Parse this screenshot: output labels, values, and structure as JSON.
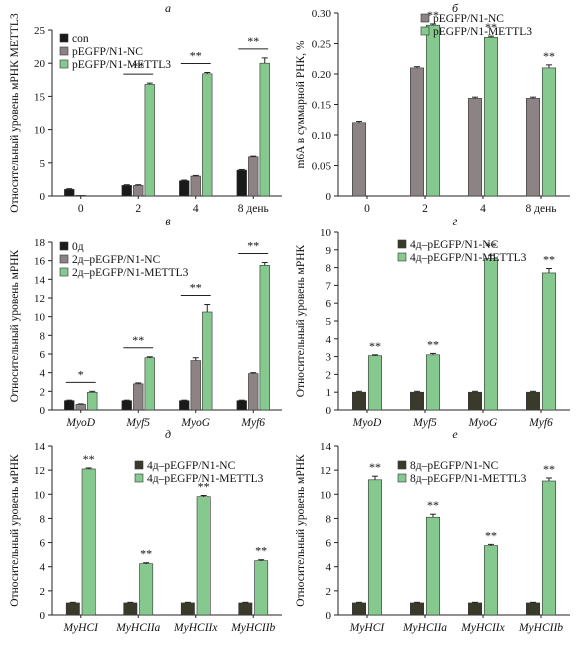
{
  "colors": {
    "con": "#1a1a1a",
    "dark": "#3a3a2a",
    "gray": "#8c8484",
    "green": "#86c98f",
    "axis": "#222222"
  },
  "chart_data": [
    {
      "panel": "а",
      "type": "bar",
      "ylabel": "Относительный уровень мРНК METTL3",
      "ylim": [
        0,
        25
      ],
      "yticks": [
        "0",
        "5",
        "10",
        "15",
        "20",
        "25"
      ],
      "categories": [
        "0",
        "2",
        "4",
        "8 день"
      ],
      "legend": [
        "con",
        "pEGFP/N1-NC",
        "pEGFP/N1-METTL3"
      ],
      "series": [
        {
          "name": "con",
          "values": [
            1.0,
            1.6,
            2.3,
            3.9
          ],
          "errors": [
            0.1,
            0.1,
            0.1,
            0.1
          ]
        },
        {
          "name": "pEGFP/N1-NC",
          "values": [
            0.1,
            1.6,
            3.0,
            5.9
          ],
          "errors": [
            0,
            0.1,
            0.1,
            0.1
          ]
        },
        {
          "name": "pEGFP/N1-METTL3",
          "values": [
            null,
            16.8,
            18.4,
            20.0
          ],
          "errors": [
            0,
            0.2,
            0.2,
            0.8
          ]
        }
      ],
      "annotations": [
        {
          "category": 1,
          "text": "**"
        },
        {
          "category": 2,
          "text": "**"
        },
        {
          "category": 3,
          "text": "**"
        }
      ]
    },
    {
      "panel": "б",
      "type": "bar",
      "ylabel": "m6A в суммарной РНК, %",
      "ylim": [
        0,
        0.3
      ],
      "yticks": [
        "0",
        "0.05",
        "0.10",
        "0.15",
        "0.20",
        "0.25",
        "0.30"
      ],
      "categories": [
        "0",
        "2",
        "4",
        "8 день"
      ],
      "legend": [
        "pEGFP/N1-NC",
        "pEGFP/N1-METTL3"
      ],
      "series": [
        {
          "name": "pEGFP/N1-NC",
          "values": [
            0.12,
            0.21,
            0.16,
            0.16
          ],
          "errors": [
            0.002,
            0.002,
            0.002,
            0.002
          ]
        },
        {
          "name": "pEGFP/N1-METTL3",
          "values": [
            null,
            0.28,
            0.26,
            0.21
          ],
          "errors": [
            0,
            0.002,
            0.002,
            0.005
          ]
        }
      ],
      "annotations": [
        {
          "category": 1,
          "text": "**"
        },
        {
          "category": 2,
          "text": "**"
        },
        {
          "category": 3,
          "text": "**"
        }
      ]
    },
    {
      "panel": "в",
      "type": "bar",
      "ylabel": "Относительный уровень мРНК",
      "ylim": [
        0,
        18
      ],
      "yticks": [
        "0",
        "2",
        "4",
        "6",
        "8",
        "10",
        "12",
        "14",
        "16",
        "18"
      ],
      "categories": [
        "MyoD",
        "Myf5",
        "MyoG",
        "Myf6"
      ],
      "legend": [
        "0д",
        "2д–pEGFP/N1-NC",
        "2д–pEGFP/N1-METTL3"
      ],
      "series": [
        {
          "name": "0д",
          "values": [
            1.0,
            1.0,
            1.0,
            1.0
          ],
          "errors": [
            0.05,
            0.05,
            0.05,
            0.05
          ]
        },
        {
          "name": "2д–pEGFP/N1-NC",
          "values": [
            0.6,
            2.8,
            5.3,
            3.9
          ],
          "errors": [
            0.05,
            0.1,
            0.3,
            0.1
          ]
        },
        {
          "name": "2д–pEGFP/N1-METTL3",
          "values": [
            1.9,
            5.6,
            10.5,
            15.5
          ],
          "errors": [
            0.1,
            0.1,
            0.8,
            0.3
          ]
        }
      ],
      "annotations": [
        {
          "category": 0,
          "text": "*"
        },
        {
          "category": 1,
          "text": "**"
        },
        {
          "category": 2,
          "text": "**"
        },
        {
          "category": 3,
          "text": "**"
        }
      ]
    },
    {
      "panel": "г",
      "type": "bar",
      "ylabel": "Относительный уровень мРНК",
      "ylim": [
        0,
        10
      ],
      "yticks": [
        "0",
        "1",
        "2",
        "3",
        "4",
        "5",
        "6",
        "7",
        "8",
        "9",
        "10"
      ],
      "categories": [
        "MyoD",
        "Myf5",
        "MyoG",
        "Myf6"
      ],
      "legend": [
        "4д–pEGFP/N1-NC",
        "4д–pEGFP/N1-METTL3"
      ],
      "series": [
        {
          "name": "4д–pEGFP/N1-NC",
          "values": [
            1.0,
            1.0,
            1.0,
            1.0
          ],
          "errors": [
            0.05,
            0.05,
            0.05,
            0.05
          ]
        },
        {
          "name": "4д–pEGFP/N1-METTL3",
          "values": [
            3.05,
            3.1,
            8.5,
            7.7
          ],
          "errors": [
            0.05,
            0.08,
            0.2,
            0.25
          ]
        }
      ],
      "annotations": [
        {
          "category": 0,
          "text": "**"
        },
        {
          "category": 1,
          "text": "**"
        },
        {
          "category": 2,
          "text": "**"
        },
        {
          "category": 3,
          "text": "**"
        }
      ]
    },
    {
      "panel": "д",
      "type": "bar",
      "ylabel": "Относительный уровень мРНК",
      "ylim": [
        0,
        14
      ],
      "yticks": [
        "0",
        "2",
        "4",
        "6",
        "8",
        "10",
        "12",
        "14"
      ],
      "categories": [
        "MyHCI",
        "MyHCIIa",
        "MyHCIIx",
        "MyHCIIb"
      ],
      "legend": [
        "4д–pEGFP/N1-NC",
        "4д–pEGFP/N1-METTL3"
      ],
      "series": [
        {
          "name": "4д–pEGFP/N1-NC",
          "values": [
            1.0,
            1.0,
            1.0,
            1.0
          ],
          "errors": [
            0.05,
            0.05,
            0.05,
            0.05
          ]
        },
        {
          "name": "4д–pEGFP/N1-METTL3",
          "values": [
            12.1,
            4.25,
            9.8,
            4.5
          ],
          "errors": [
            0.08,
            0.08,
            0.1,
            0.08
          ]
        }
      ],
      "annotations": [
        {
          "category": 0,
          "text": "**"
        },
        {
          "category": 1,
          "text": "**"
        },
        {
          "category": 2,
          "text": "**"
        },
        {
          "category": 3,
          "text": "**"
        }
      ]
    },
    {
      "panel": "е",
      "type": "bar",
      "ylabel": "Относительный уровень мРНК",
      "ylim": [
        0,
        14
      ],
      "yticks": [
        "0",
        "2",
        "4",
        "6",
        "8",
        "10",
        "12",
        "14"
      ],
      "categories": [
        "MyHCI",
        "MyHCIIa",
        "MyHCIIx",
        "MyHCIIb"
      ],
      "legend": [
        "8д–pEGFP/N1-NC",
        "8д–pEGFP/N1-METTL3"
      ],
      "series": [
        {
          "name": "8д–pEGFP/N1-NC",
          "values": [
            1.0,
            1.0,
            1.0,
            1.0
          ],
          "errors": [
            0.05,
            0.05,
            0.05,
            0.05
          ]
        },
        {
          "name": "8д–pEGFP/N1-METTL3",
          "values": [
            11.2,
            8.1,
            5.75,
            11.1
          ],
          "errors": [
            0.3,
            0.25,
            0.1,
            0.25
          ]
        }
      ],
      "annotations": [
        {
          "category": 0,
          "text": "**"
        },
        {
          "category": 1,
          "text": "**"
        },
        {
          "category": 2,
          "text": "**"
        },
        {
          "category": 3,
          "text": "**"
        }
      ]
    }
  ]
}
